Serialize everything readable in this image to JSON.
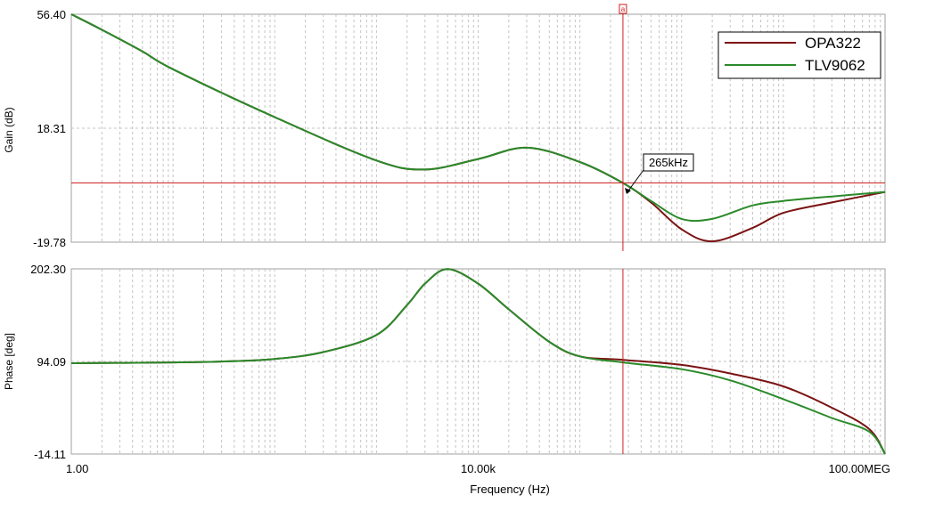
{
  "chart_data": [
    {
      "type": "line",
      "panel": "gain",
      "xscale": "log",
      "xlim": [
        1,
        100000000
      ],
      "ylim": [
        -19.78,
        56.4
      ],
      "ylabel": "Gain (dB)",
      "ytick_labels": [
        "56.40",
        "18.31",
        "-19.78"
      ],
      "ytick_values": [
        56.4,
        18.31,
        -19.78
      ],
      "grid": true,
      "cursor": {
        "label": "a",
        "x": 265000,
        "y": 0
      },
      "annotation": {
        "text": "265kHz",
        "x": 265000,
        "y": 0
      },
      "legend": {
        "position": "top-right",
        "entries": [
          "OPA322",
          "TLV9062"
        ]
      },
      "series": [
        {
          "name": "OPA322",
          "color": "#7a1212",
          "x": [
            1,
            2,
            5,
            10,
            100,
            1000,
            3000,
            10000,
            30000,
            100000,
            265000,
            500000,
            1000000,
            2000000,
            5000000,
            10000000,
            30000000,
            100000000
          ],
          "y": [
            56.4,
            51.2,
            44.0,
            38.0,
            22.0,
            7.5,
            4.5,
            8.0,
            11.8,
            7.0,
            0.0,
            -6.5,
            -15.5,
            -19.5,
            -15.0,
            -10.0,
            -6.5,
            -3.0
          ]
        },
        {
          "name": "TLV9062",
          "color": "#2a8a2a",
          "x": [
            1,
            2,
            5,
            10,
            100,
            1000,
            3000,
            10000,
            30000,
            100000,
            265000,
            500000,
            1000000,
            2000000,
            5000000,
            10000000,
            30000000,
            100000000
          ],
          "y": [
            56.4,
            51.2,
            44.0,
            38.0,
            22.0,
            7.5,
            4.5,
            8.0,
            11.8,
            7.0,
            0.0,
            -6.0,
            -12.0,
            -12.0,
            -7.5,
            -6.0,
            -4.5,
            -3.0
          ]
        }
      ]
    },
    {
      "type": "line",
      "panel": "phase",
      "xscale": "log",
      "xlim": [
        1,
        100000000
      ],
      "ylim": [
        -14.11,
        202.3
      ],
      "xlabel": "Frequency (Hz)",
      "ylabel": "Phase [deg]",
      "ytick_labels": [
        "202.30",
        "94.09",
        "-14.11"
      ],
      "ytick_values": [
        202.3,
        94.09,
        -14.11
      ],
      "xtick_labels": [
        "1.00",
        "10.00k",
        "100.00MEG"
      ],
      "xtick_values": [
        1,
        10000,
        100000000
      ],
      "grid": true,
      "cursor": {
        "x": 265000
      },
      "series": [
        {
          "name": "OPA322",
          "color": "#7a1212",
          "x": [
            1,
            10,
            30,
            100,
            300,
            1000,
            2000,
            3000,
            5000,
            10000,
            20000,
            50000,
            100000,
            265000,
            1000000,
            3000000,
            10000000,
            30000000,
            70000000,
            100000000
          ],
          "y": [
            92.0,
            93.0,
            94.0,
            97.0,
            105.0,
            125.0,
            160.0,
            185.0,
            202.0,
            185.0,
            155.0,
            117.0,
            100.0,
            96.0,
            90.0,
            80.0,
            65.0,
            40.0,
            15.0,
            -14.0
          ]
        },
        {
          "name": "TLV9062",
          "color": "#2a8a2a",
          "x": [
            1,
            10,
            30,
            100,
            300,
            1000,
            2000,
            3000,
            5000,
            10000,
            20000,
            50000,
            100000,
            265000,
            1000000,
            3000000,
            10000000,
            30000000,
            70000000,
            100000000
          ],
          "y": [
            92.0,
            93.0,
            94.0,
            97.0,
            105.0,
            125.0,
            160.0,
            185.0,
            202.0,
            185.0,
            155.0,
            117.0,
            100.0,
            93.0,
            85.0,
            72.0,
            50.0,
            28.0,
            12.0,
            -14.0
          ]
        }
      ]
    }
  ]
}
